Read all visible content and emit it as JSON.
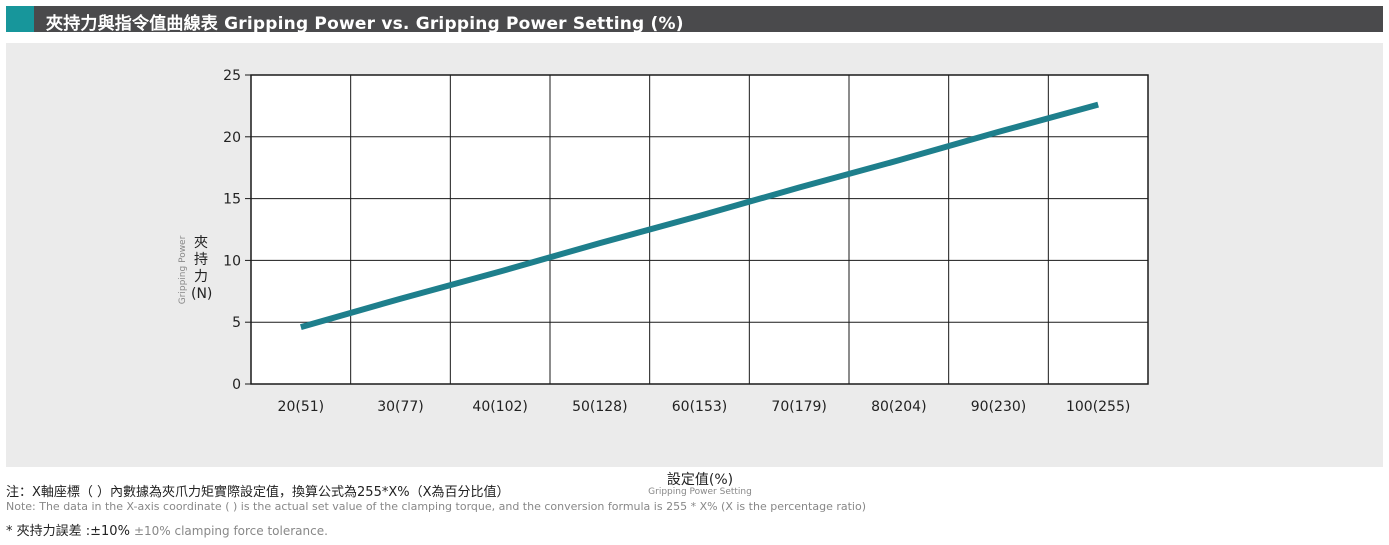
{
  "header": {
    "title": "夾持力與指令值曲線表 Gripping Power vs. Gripping Power Setting (%)"
  },
  "colors": {
    "accent": "#17969b",
    "title_bar": "#4a4a4c",
    "panel": "#ebebeb",
    "line": "#1e7f8c",
    "grid": "#1a1a1a"
  },
  "axis_labels": {
    "y_zh": "夾持力(N)",
    "y_en": "Gripping Power",
    "x_zh": "設定值(%)",
    "x_en": "Gripping Power Setting"
  },
  "notes": {
    "note_zh": "注：X軸座標（ ）內數據為夾爪力矩實際設定值，換算公式為255*X%（X為百分比值）",
    "note_en": "Note: The data in the X-axis coordinate ( ) is the actual set value of the clamping torque, and the conversion formula is 255 * X% (X is the percentage ratio)",
    "tolerance_zh": "* 夾持力誤差 :±10%",
    "tolerance_en": "±10% clamping force tolerance."
  },
  "chart_data": {
    "type": "line",
    "categories": [
      "20(51)",
      "30(77)",
      "40(102)",
      "50(128)",
      "60(153)",
      "70(179)",
      "80(204)",
      "90(230)",
      "100(255)"
    ],
    "x": [
      20,
      30,
      40,
      50,
      60,
      70,
      80,
      90,
      100
    ],
    "series": [
      {
        "values": [
          4.6,
          6.9,
          9.1,
          11.4,
          13.6,
          15.9,
          18.1,
          20.4,
          22.6
        ]
      }
    ],
    "xlabel": "設定值(%)",
    "ylabel": "夾持力(N)",
    "ylim": [
      0,
      25
    ],
    "yticks": [
      0,
      5,
      10,
      15,
      20,
      25
    ],
    "grid": true,
    "legend": "none"
  }
}
